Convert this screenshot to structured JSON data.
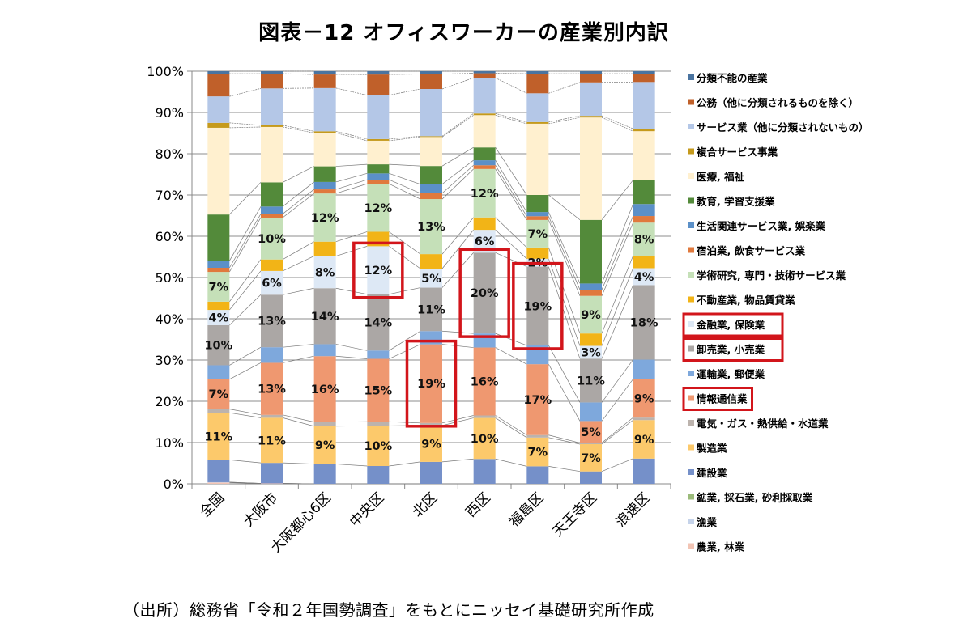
{
  "chart_data": {
    "type": "bar",
    "stacked": true,
    "percent": true,
    "title": "図表－12 オフィスワーカーの産業別内訳",
    "source": "（出所）総務省「令和２年国勢調査」をもとにニッセイ基礎研究所作成",
    "xlabel": "",
    "ylabel": "",
    "ylim": [
      0,
      100
    ],
    "yticks": [
      "0%",
      "10%",
      "20%",
      "30%",
      "40%",
      "50%",
      "60%",
      "70%",
      "80%",
      "90%",
      "100%"
    ],
    "grid": true,
    "legend_position": "right",
    "series_lines": true,
    "categories": [
      "全国",
      "大阪市",
      "大阪都心6区",
      "中央区",
      "北区",
      "西区",
      "福島区",
      "天王寺区",
      "浪速区"
    ],
    "series": [
      {
        "name": "農業, 林業",
        "color": "#f2c4b4",
        "values": [
          0.3,
          0.1,
          0.0,
          0.0,
          0.0,
          0.0,
          0.0,
          0.0,
          0.0
        ]
      },
      {
        "name": "漁業",
        "color": "#c5d3ea",
        "values": [
          0.1,
          0.0,
          0.0,
          0.0,
          0.0,
          0.0,
          0.0,
          0.0,
          0.0
        ]
      },
      {
        "name": "鉱業, 採石業, 砂利採取業",
        "color": "#9bbb7a",
        "values": [
          0.0,
          0.0,
          0.0,
          0.0,
          0.0,
          0.0,
          0.0,
          0.0,
          0.0
        ]
      },
      {
        "name": "建設業",
        "color": "#7590c9",
        "values": [
          5.4,
          5.0,
          4.8,
          4.3,
          5.3,
          6.0,
          4.2,
          3.0,
          6.1
        ]
      },
      {
        "name": "製造業",
        "color": "#fcc96b",
        "values": [
          11.4,
          11.0,
          9.2,
          9.7,
          8.8,
          9.9,
          6.9,
          6.6,
          9.3
        ]
      },
      {
        "name": "電気・ガス・熱供給・水道業",
        "color": "#bcb3ad",
        "values": [
          0.9,
          0.7,
          1.0,
          1.0,
          0.6,
          0.6,
          0.6,
          0.3,
          0.6
        ]
      },
      {
        "name": "情報通信業",
        "color": "#ef9870",
        "values": [
          7.2,
          12.7,
          16.0,
          15.2,
          19.0,
          16.4,
          17.0,
          5.3,
          9.3
        ]
      },
      {
        "name": "運輸業, 郵便業",
        "color": "#7ea8dc",
        "values": [
          3.4,
          3.8,
          2.9,
          2.0,
          3.2,
          3.4,
          4.5,
          4.5,
          4.7
        ]
      },
      {
        "name": "卸売業, 小売業",
        "color": "#aba7a5",
        "values": [
          9.7,
          12.8,
          13.6,
          13.6,
          10.5,
          19.5,
          18.9,
          10.6,
          18.0
        ]
      },
      {
        "name": "金融業, 保険業",
        "color": "#dde8f5",
        "values": [
          3.7,
          5.8,
          7.8,
          11.6,
          4.6,
          5.5,
          1.9,
          3.1,
          4.1
        ]
      },
      {
        "name": "不動産業, 物品賃貸業",
        "color": "#f2b417",
        "values": [
          2.0,
          2.8,
          3.5,
          3.5,
          3.5,
          3.0,
          2.7,
          3.0,
          3.0
        ]
      },
      {
        "name": "学術研究, 専門・技術サービス業",
        "color": "#c5e0b8",
        "values": [
          7.2,
          10.2,
          11.7,
          11.6,
          13.3,
          11.7,
          6.6,
          9.1,
          8.0
        ]
      },
      {
        "name": "宿泊業, 飲食サービス業",
        "color": "#e0793d",
        "values": [
          1.0,
          0.9,
          1.0,
          1.0,
          1.4,
          0.9,
          0.9,
          1.5,
          1.6
        ]
      },
      {
        "name": "生活関連サービス業, 娯楽業",
        "color": "#5b90c8",
        "values": [
          1.7,
          1.8,
          1.8,
          1.5,
          2.2,
          1.2,
          1.0,
          1.5,
          2.9
        ]
      },
      {
        "name": "教育, 学習支援業",
        "color": "#538a3a",
        "values": [
          11.2,
          5.9,
          3.8,
          2.2,
          4.4,
          3.1,
          4.1,
          15.4,
          5.8
        ]
      },
      {
        "name": "医療, 福祉",
        "color": "#fff0cf",
        "values": [
          21.0,
          13.5,
          8.1,
          5.7,
          7.0,
          7.8,
          17.1,
          24.8,
          11.8
        ]
      },
      {
        "name": "複合サービス事業",
        "color": "#c59a1c",
        "values": [
          1.2,
          0.4,
          0.4,
          0.4,
          0.2,
          0.4,
          0.4,
          0.4,
          0.6
        ]
      },
      {
        "name": "サービス業（他に分類されないもの）",
        "color": "#b4c7e7",
        "values": [
          6.4,
          9.0,
          10.5,
          10.6,
          11.4,
          8.6,
          6.9,
          8.1,
          11.3
        ]
      },
      {
        "name": "公務（他に分類されるものを除く）",
        "color": "#c0602a",
        "values": [
          5.5,
          3.6,
          3.3,
          5.0,
          3.6,
          1.1,
          4.7,
          2.1,
          2.0
        ]
      },
      {
        "name": "分類不能の産業",
        "color": "#4a74a0",
        "values": [
          0.6,
          0.6,
          0.8,
          0.8,
          0.7,
          0.5,
          0.6,
          0.6,
          0.6
        ]
      }
    ],
    "data_labels": [
      [
        {
          "series": "製造業",
          "text": "11%"
        },
        {
          "series": "情報通信業",
          "text": "7%"
        },
        {
          "series": "卸売業, 小売業",
          "text": "10%"
        },
        {
          "series": "金融業, 保険業",
          "text": "4%"
        },
        {
          "series": "学術研究, 専門・技術サービス業",
          "text": "7%"
        }
      ],
      [
        {
          "series": "製造業",
          "text": "11%"
        },
        {
          "series": "情報通信業",
          "text": "13%"
        },
        {
          "series": "卸売業, 小売業",
          "text": "13%"
        },
        {
          "series": "金融業, 保険業",
          "text": "6%"
        },
        {
          "series": "学術研究, 専門・技術サービス業",
          "text": "10%"
        }
      ],
      [
        {
          "series": "製造業",
          "text": "9%"
        },
        {
          "series": "情報通信業",
          "text": "16%"
        },
        {
          "series": "卸売業, 小売業",
          "text": "14%"
        },
        {
          "series": "金融業, 保険業",
          "text": "8%"
        },
        {
          "series": "学術研究, 専門・技術サービス業",
          "text": "12%"
        }
      ],
      [
        {
          "series": "製造業",
          "text": "10%"
        },
        {
          "series": "情報通信業",
          "text": "15%"
        },
        {
          "series": "卸売業, 小売業",
          "text": "14%"
        },
        {
          "series": "金融業, 保険業",
          "text": "12%"
        },
        {
          "series": "学術研究, 専門・技術サービス業",
          "text": "12%"
        }
      ],
      [
        {
          "series": "製造業",
          "text": "9%"
        },
        {
          "series": "情報通信業",
          "text": "19%"
        },
        {
          "series": "卸売業, 小売業",
          "text": "11%"
        },
        {
          "series": "金融業, 保険業",
          "text": "5%"
        },
        {
          "series": "学術研究, 専門・技術サービス業",
          "text": "13%"
        }
      ],
      [
        {
          "series": "製造業",
          "text": "10%"
        },
        {
          "series": "情報通信業",
          "text": "16%"
        },
        {
          "series": "卸売業, 小売業",
          "text": "20%"
        },
        {
          "series": "金融業, 保険業",
          "text": "6%"
        },
        {
          "series": "学術研究, 専門・技術サービス業",
          "text": "12%"
        }
      ],
      [
        {
          "series": "製造業",
          "text": "7%"
        },
        {
          "series": "情報通信業",
          "text": "17%"
        },
        {
          "series": "卸売業, 小売業",
          "text": "19%"
        },
        {
          "series": "金融業, 保険業",
          "text": "2%"
        },
        {
          "series": "学術研究, 専門・技術サービス業",
          "text": "7%"
        }
      ],
      [
        {
          "series": "製造業",
          "text": "7%"
        },
        {
          "series": "情報通信業",
          "text": "5%"
        },
        {
          "series": "卸売業, 小売業",
          "text": "11%"
        },
        {
          "series": "金融業, 保険業",
          "text": "3%"
        },
        {
          "series": "学術研究, 専門・技術サービス業",
          "text": "9%"
        }
      ],
      [
        {
          "series": "製造業",
          "text": "9%"
        },
        {
          "series": "情報通信業",
          "text": "9%"
        },
        {
          "series": "卸売業, 小売業",
          "text": "18%"
        },
        {
          "series": "金融業, 保険業",
          "text": "4%"
        },
        {
          "series": "学術研究, 専門・技術サービス業",
          "text": "8%"
        }
      ]
    ],
    "highlights": [
      {
        "category": "中央区",
        "series": "金融業, 保険業"
      },
      {
        "category": "北区",
        "series": "情報通信業"
      },
      {
        "category": "西区",
        "series": "卸売業, 小売業"
      },
      {
        "category": "福島区",
        "series": "卸売業, 小売業"
      }
    ],
    "legend_highlights": [
      "金融業, 保険業",
      "卸売業, 小売業",
      "情報通信業"
    ],
    "highlight_color": "#d2151b"
  }
}
